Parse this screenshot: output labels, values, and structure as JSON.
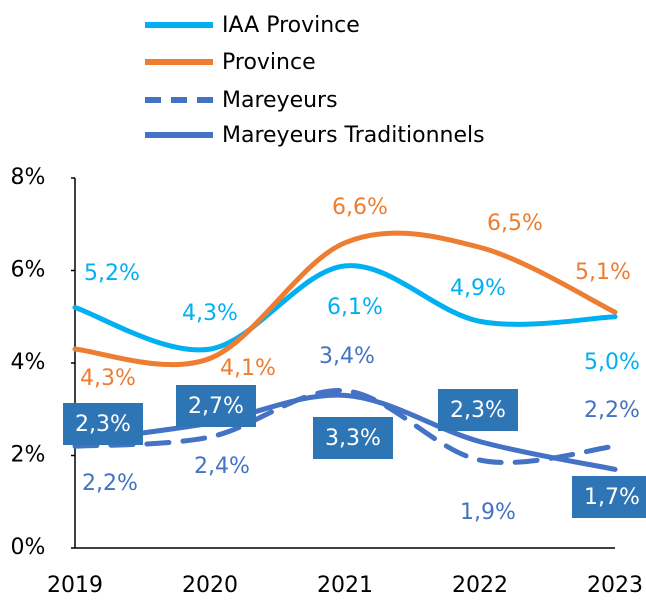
{
  "chart_data": {
    "type": "line",
    "categories": [
      "2019",
      "2020",
      "2021",
      "2022",
      "2023"
    ],
    "ylim": [
      0,
      8
    ],
    "yticks": [
      {
        "value": 0,
        "label": "0%"
      },
      {
        "value": 2,
        "label": "2%"
      },
      {
        "value": 4,
        "label": "4%"
      },
      {
        "value": 6,
        "label": "6%"
      },
      {
        "value": 8,
        "label": "8%"
      }
    ],
    "smooth": true,
    "legend": "top",
    "series": [
      {
        "name": "IAA Province",
        "color": "#00b0f0",
        "values": [
          5.2,
          4.3,
          6.1,
          4.9,
          5.0
        ],
        "value_labels": [
          "5,2%",
          "4,3%",
          "6,1%",
          "4,9%",
          "5,0%"
        ]
      },
      {
        "name": "Province",
        "color": "#ed7d31",
        "values": [
          4.3,
          4.1,
          6.6,
          6.5,
          5.1
        ],
        "value_labels": [
          "4,3%",
          "4,1%",
          "6,6%",
          "6,5%",
          "5,1%"
        ]
      },
      {
        "name": "Mareyeurs",
        "color": "#4472c4",
        "dashed": true,
        "values": [
          2.2,
          2.4,
          3.4,
          1.9,
          2.2
        ],
        "value_labels": [
          "2,2%",
          "2,4%",
          "3,4%",
          "1,9%",
          "2,2%"
        ]
      },
      {
        "name": "Mareyeurs Traditionnels",
        "color": "#4472c4",
        "boxed_labels": true,
        "box_color": "#2e75b6",
        "values": [
          2.3,
          2.7,
          3.3,
          2.3,
          1.7
        ],
        "value_labels": [
          "2,3%",
          "2,7%",
          "3,3%",
          "2,3%",
          "1,7%"
        ]
      }
    ]
  }
}
